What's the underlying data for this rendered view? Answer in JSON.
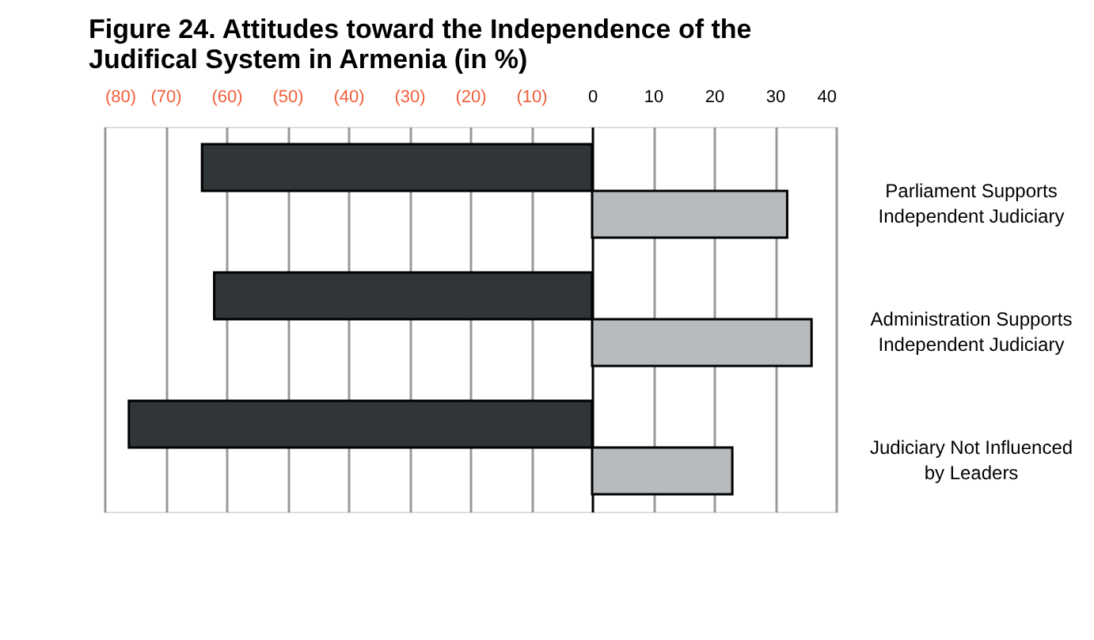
{
  "chart_data": {
    "type": "bar",
    "orientation": "horizontal",
    "title": "Figure 24.   Attitudes toward the Independence of the Judifical System in Armenia (in %)",
    "categories": [
      "Parliament Supports Independent Judiciary",
      "Administration Supports Independent Judiciary",
      "Judiciary Not Influenced by Leaders"
    ],
    "series": [
      {
        "color": "#303538",
        "values": [
          -64,
          -62,
          -76
        ]
      },
      {
        "color": "#b8bbbd",
        "values": [
          32,
          36,
          23
        ]
      }
    ],
    "xlim": [
      -80,
      40
    ],
    "xticks": [
      {
        "value": -80,
        "label": "(80)"
      },
      {
        "value": -70,
        "label": "(70)"
      },
      {
        "value": -60,
        "label": "(60)"
      },
      {
        "value": -50,
        "label": "(50)"
      },
      {
        "value": -40,
        "label": "(40)"
      },
      {
        "value": -30,
        "label": "(30)"
      },
      {
        "value": -20,
        "label": "(20)"
      },
      {
        "value": -10,
        "label": "(10)"
      },
      0,
      10,
      20,
      30,
      40
    ],
    "grid": "x",
    "legend": false
  }
}
